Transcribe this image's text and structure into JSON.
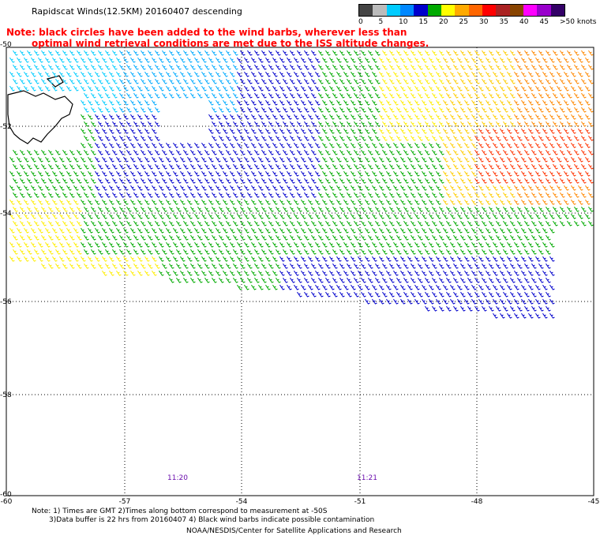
{
  "header": {
    "title": "Rapidscat Winds(12.5KM) 20160407 descending",
    "note_line1": "Note: black circles have been added to the wind barbs, wherever less than",
    "note_line2": "optimal wind retrieval conditions are met due to the ISS altitude changes."
  },
  "legend": {
    "colors": [
      "#444444",
      "#bbbbbb",
      "#00ccff",
      "#0088ff",
      "#0000cc",
      "#00aa00",
      "#ffff00",
      "#ffaa00",
      "#ff6600",
      "#ff0000",
      "#aa2222",
      "#884400",
      "#ff00ff",
      "#9900cc",
      "#330066"
    ],
    "labels": [
      "0",
      "5",
      "10",
      "15",
      "20",
      "25",
      "30",
      "35",
      "40",
      "45",
      ">50 knots"
    ]
  },
  "axes": {
    "x_ticks": [
      "-60",
      "-57",
      "-54",
      "-51",
      "-48",
      "-45"
    ],
    "y_ticks": [
      "-50",
      "-52",
      "-54",
      "-56",
      "-58",
      "-60"
    ]
  },
  "times": [
    "11:20",
    "11:21"
  ],
  "footer": {
    "line1": "Note: 1) Times are GMT 2)Times along bottom correspond to measurement at -50S",
    "line2": "3)Data buffer is 22 hrs from 20160407 4) Black wind barbs indicate possible contamination",
    "line3": "NOAA/NESDIS/Center for Satellite Applications and Research"
  }
}
